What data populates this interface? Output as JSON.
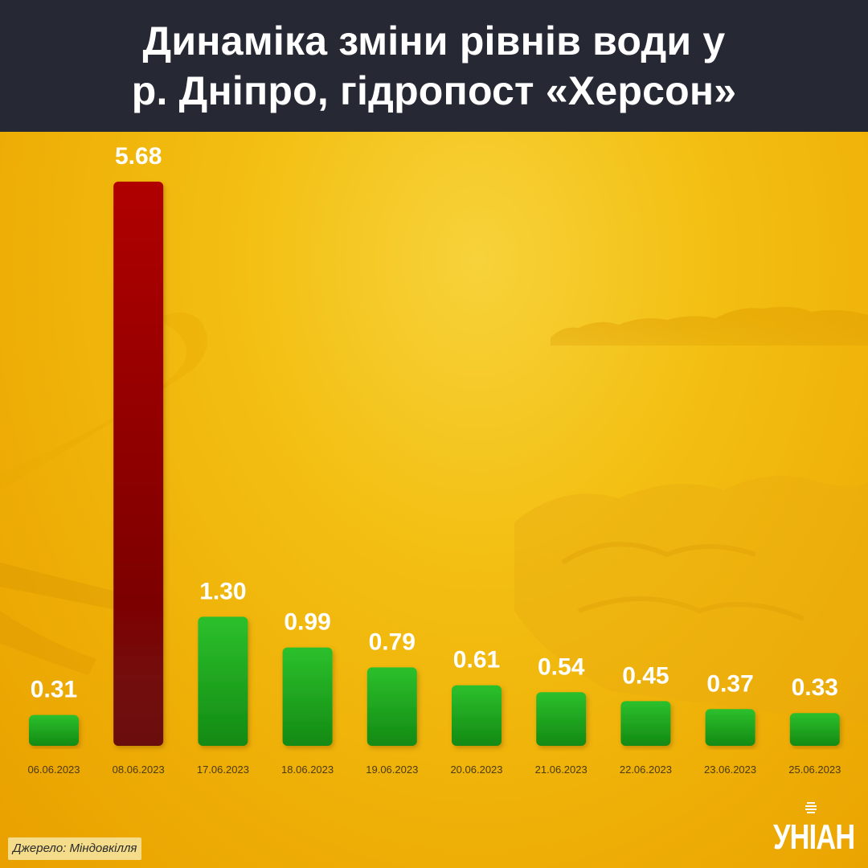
{
  "title": {
    "line1": "Динаміка зміни рівнів води у",
    "line2": "р. Дніпро, гідропост «Херсон»"
  },
  "colors": {
    "header_bg": "#262833",
    "background": "#f3bf12",
    "bar_highlight": "#9a0a0a",
    "bar_normal": "#1ea01e"
  },
  "chart_data": {
    "type": "bar",
    "categories": [
      "06.06.2023",
      "08.06.2023",
      "17.06.2023",
      "18.06.2023",
      "19.06.2023",
      "20.06.2023",
      "21.06.2023",
      "22.06.2023",
      "23.06.2023",
      "25.06.2023"
    ],
    "values": [
      0.31,
      5.68,
      1.3,
      0.99,
      0.79,
      0.61,
      0.54,
      0.45,
      0.37,
      0.33
    ],
    "value_labels": [
      "0.31",
      "5.68",
      "1.30",
      "0.99",
      "0.79",
      "0.61",
      "0.54",
      "0.45",
      "0.37",
      "0.33"
    ],
    "highlight_index": 1,
    "grid": false,
    "legend": "none"
  },
  "source": "Джерело: Міндовкілля",
  "logo": {
    "text": "УНІАН",
    "icon": "uniian-mark-icon"
  }
}
